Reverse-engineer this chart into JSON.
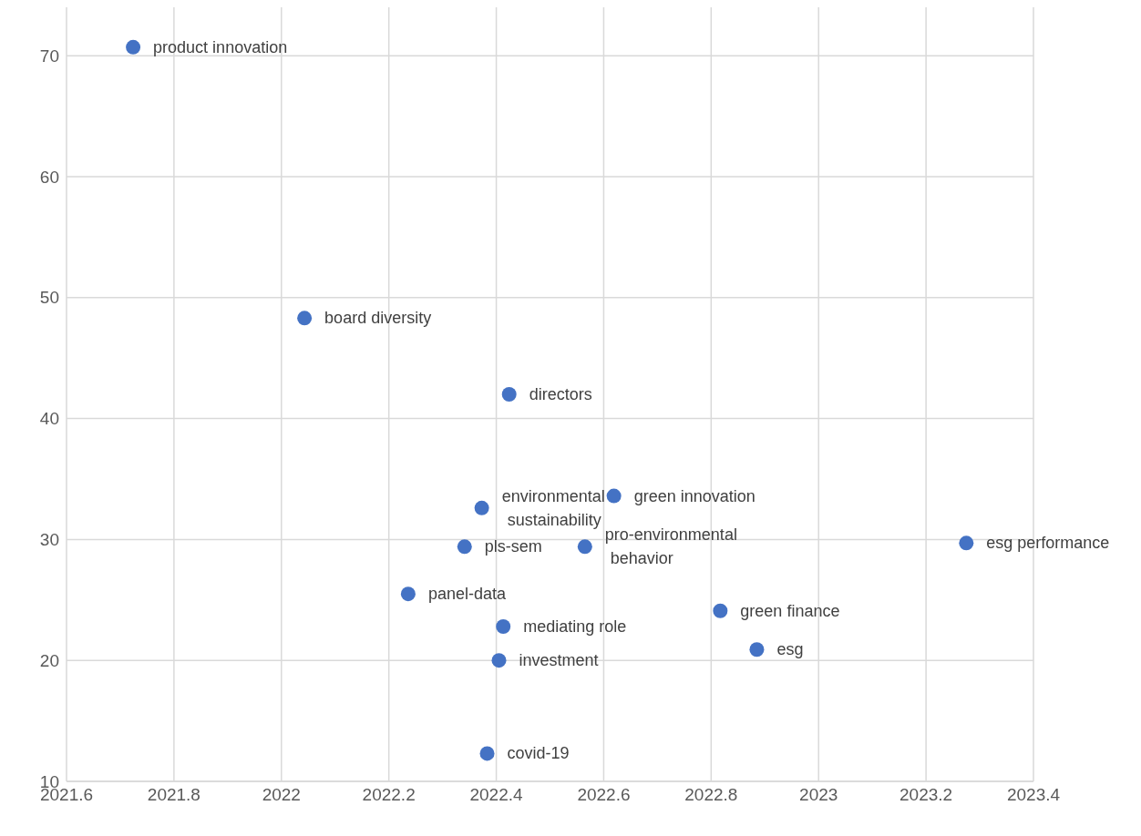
{
  "chart_data": {
    "type": "scatter",
    "x": [
      2021.724,
      2022.043,
      2022.424,
      2022.373,
      2022.619,
      2022.341,
      2022.565,
      2023.275,
      2022.236,
      2022.817,
      2022.413,
      2022.885,
      2022.405,
      2022.383
    ],
    "values": [
      70.7,
      48.3,
      42.0,
      32.6,
      33.6,
      29.4,
      29.4,
      29.7,
      25.5,
      24.1,
      22.8,
      20.9,
      20.0,
      12.3
    ],
    "value_labels": [
      "product innovation",
      "board diversity",
      "directors",
      "environmental sustainability",
      "green innovation",
      "pls-sem",
      "pro-environmental behavior",
      "esg performance",
      "panel-data",
      "green finance",
      "mediating role",
      "esg",
      "investment",
      "covid-19"
    ],
    "color": "#4472c4",
    "xlim": [
      2021.6,
      2023.4
    ],
    "xticks": [
      2021.6,
      2021.8,
      2022,
      2022.2,
      2022.4,
      2022.6,
      2022.8,
      2023,
      2023.2,
      2023.4
    ],
    "ylim": [
      10,
      74
    ],
    "yticks": [
      10,
      20,
      30,
      40,
      50,
      60,
      70
    ],
    "grid": true,
    "legend": false,
    "marker": "circle"
  }
}
